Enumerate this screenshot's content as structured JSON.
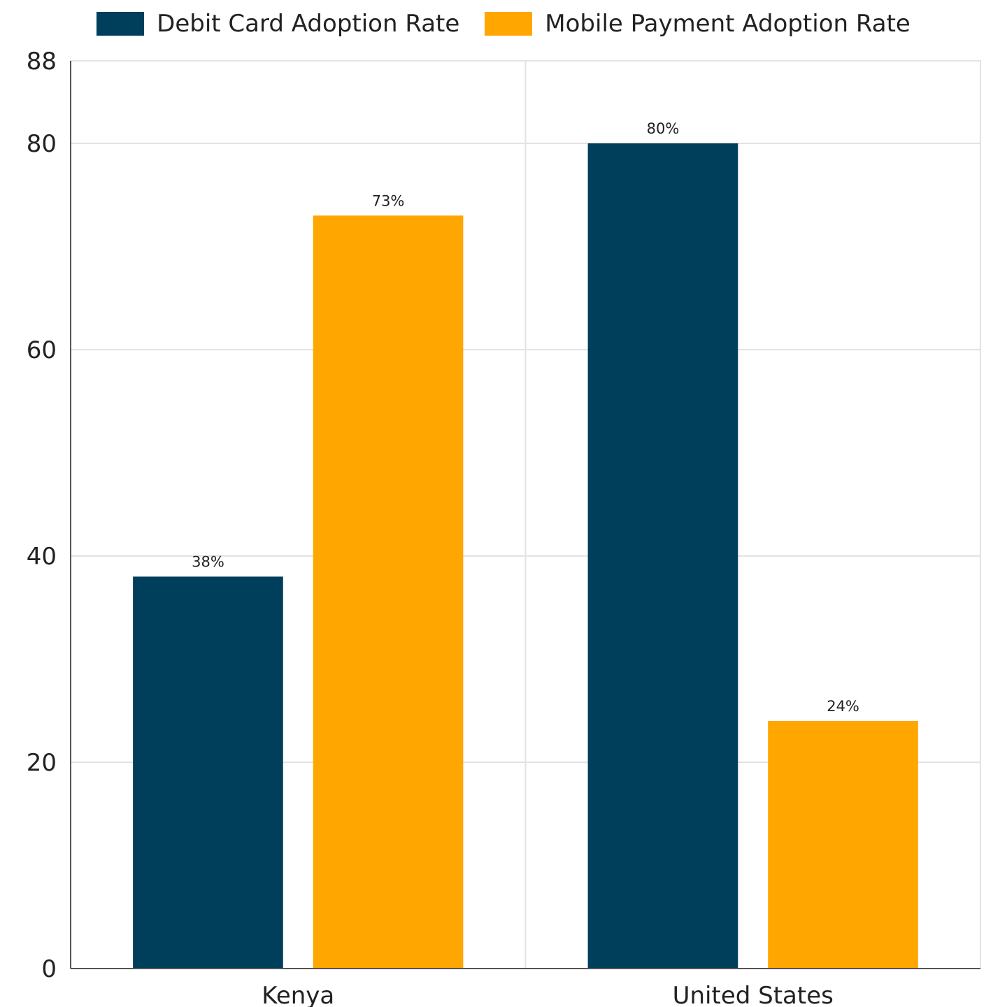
{
  "chart_data": {
    "type": "bar",
    "categories": [
      "Kenya",
      "United States"
    ],
    "series": [
      {
        "name": "Debit Card Adoption Rate",
        "values": [
          38,
          80
        ],
        "labels": [
          "38%",
          "80%"
        ],
        "color": "#003f5c"
      },
      {
        "name": "Mobile Payment Adoption Rate",
        "values": [
          73,
          24
        ],
        "labels": [
          "73%",
          "24%"
        ],
        "color": "#ffa600"
      }
    ],
    "yticks": [
      0,
      20,
      40,
      60,
      80,
      88
    ],
    "ylim": [
      0,
      88
    ],
    "grid": true,
    "legend_position": "top-center",
    "title": "",
    "xlabel": "",
    "ylabel": ""
  }
}
